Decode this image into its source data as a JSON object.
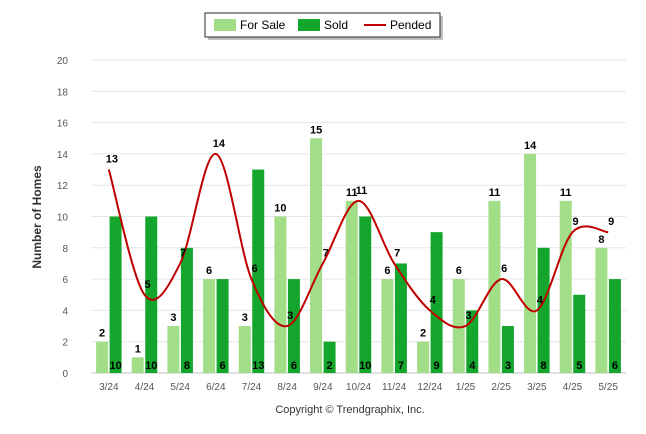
{
  "chart_data": {
    "type": "bar",
    "categories": [
      "3/24",
      "4/24",
      "5/24",
      "6/24",
      "7/24",
      "8/24",
      "9/24",
      "10/24",
      "11/24",
      "12/24",
      "1/25",
      "2/25",
      "3/25",
      "4/25",
      "5/25"
    ],
    "series": [
      {
        "name": "For Sale",
        "kind": "bar",
        "color": "#a2dd88",
        "values": [
          2,
          1,
          3,
          6,
          3,
          10,
          15,
          11,
          6,
          2,
          6,
          11,
          14,
          11,
          8
        ]
      },
      {
        "name": "Sold",
        "kind": "bar",
        "color": "#14a52c",
        "values": [
          10,
          10,
          8,
          6,
          13,
          6,
          2,
          10,
          7,
          9,
          4,
          3,
          8,
          5,
          6
        ]
      },
      {
        "name": "Pended",
        "kind": "line",
        "color": "#c00000",
        "values": [
          13,
          5,
          7,
          14,
          6,
          3,
          7,
          11,
          7,
          4,
          3,
          6,
          4,
          9,
          9
        ]
      }
    ],
    "ylabel": "Number of Homes",
    "xlabel": "",
    "ylim": [
      0,
      20
    ],
    "yticks": [
      0,
      2,
      4,
      6,
      8,
      10,
      12,
      14,
      16,
      18,
      20
    ],
    "grid": true,
    "legend_position": "top-center"
  },
  "footer": "Copyright © Trendgraphix, Inc."
}
